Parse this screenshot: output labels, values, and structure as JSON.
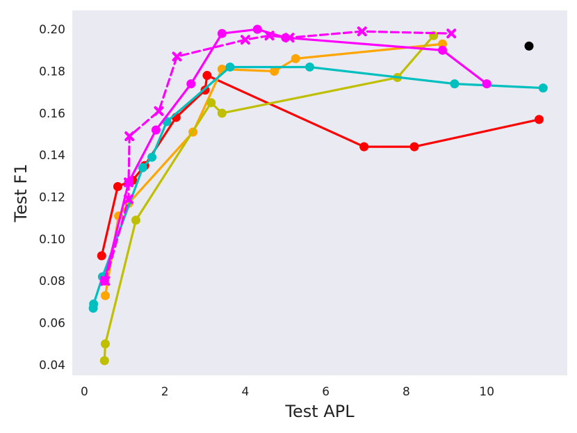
{
  "chart_data": {
    "type": "line",
    "title": "",
    "xlabel": "Test APL",
    "ylabel": "Test F1",
    "xlim": [
      -0.3,
      12.0
    ],
    "ylim": [
      0.035,
      0.209
    ],
    "xticks": [
      0,
      2,
      4,
      6,
      8,
      10
    ],
    "xtick_labels": [
      "0",
      "2",
      "4",
      "6",
      "8",
      "10"
    ],
    "yticks": [
      0.04,
      0.06,
      0.08,
      0.1,
      0.12,
      0.14,
      0.16,
      0.18,
      0.2
    ],
    "ytick_labels": [
      "0.04",
      "0.06",
      "0.08",
      "0.10",
      "0.12",
      "0.14",
      "0.16",
      "0.18",
      "0.20"
    ],
    "grid": false,
    "background": "#eaeaf2",
    "series": [
      {
        "color": "#ff0000",
        "marker": "circle",
        "dash": false,
        "x": [
          0.43,
          0.83,
          1.2,
          1.5,
          2.28,
          3.0,
          3.05,
          6.95,
          8.2,
          11.3
        ],
        "y": [
          0.092,
          0.125,
          0.128,
          0.135,
          0.158,
          0.171,
          0.178,
          0.144,
          0.144,
          0.157
        ]
      },
      {
        "color": "#ffa500",
        "marker": "circle",
        "dash": false,
        "x": [
          0.52,
          0.85,
          1.1,
          2.7,
          3.42,
          4.72,
          5.25,
          8.9
        ],
        "y": [
          0.073,
          0.111,
          0.117,
          0.151,
          0.181,
          0.18,
          0.186,
          0.193
        ]
      },
      {
        "color": "#bfbf00",
        "marker": "circle",
        "dash": false,
        "x": [
          0.5,
          0.52,
          1.28,
          3.15,
          3.42,
          7.78,
          8.68
        ],
        "y": [
          0.042,
          0.05,
          0.109,
          0.165,
          0.16,
          0.177,
          0.197
        ]
      },
      {
        "color": "#00bfbf",
        "marker": "circle",
        "dash": false,
        "x": [
          0.22,
          0.23,
          0.45,
          1.45,
          1.68,
          2.05,
          3.62,
          5.6,
          9.2,
          11.4
        ],
        "y": [
          0.067,
          0.069,
          0.082,
          0.134,
          0.139,
          0.156,
          0.182,
          0.182,
          0.174,
          0.172
        ]
      },
      {
        "color": "#ff00ff",
        "marker": "circle",
        "dash": false,
        "x": [
          0.5,
          1.1,
          1.78,
          2.65,
          3.42,
          4.3,
          5.0,
          8.9,
          10.0
        ],
        "y": [
          0.08,
          0.127,
          0.152,
          0.174,
          0.198,
          0.2,
          0.196,
          0.19,
          0.174
        ]
      },
      {
        "color": "#ff00ff",
        "marker": "x",
        "dash": true,
        "x": [
          0.52,
          1.1,
          1.1,
          1.12,
          1.85,
          2.3,
          4.0,
          4.6,
          5.1,
          6.9,
          9.12
        ],
        "y": [
          0.08,
          0.119,
          0.127,
          0.149,
          0.161,
          0.187,
          0.195,
          0.197,
          0.196,
          0.199,
          0.198
        ]
      },
      {
        "color": "#000000",
        "marker": "circle",
        "dash": false,
        "x": [
          11.05
        ],
        "y": [
          0.192
        ]
      }
    ]
  }
}
